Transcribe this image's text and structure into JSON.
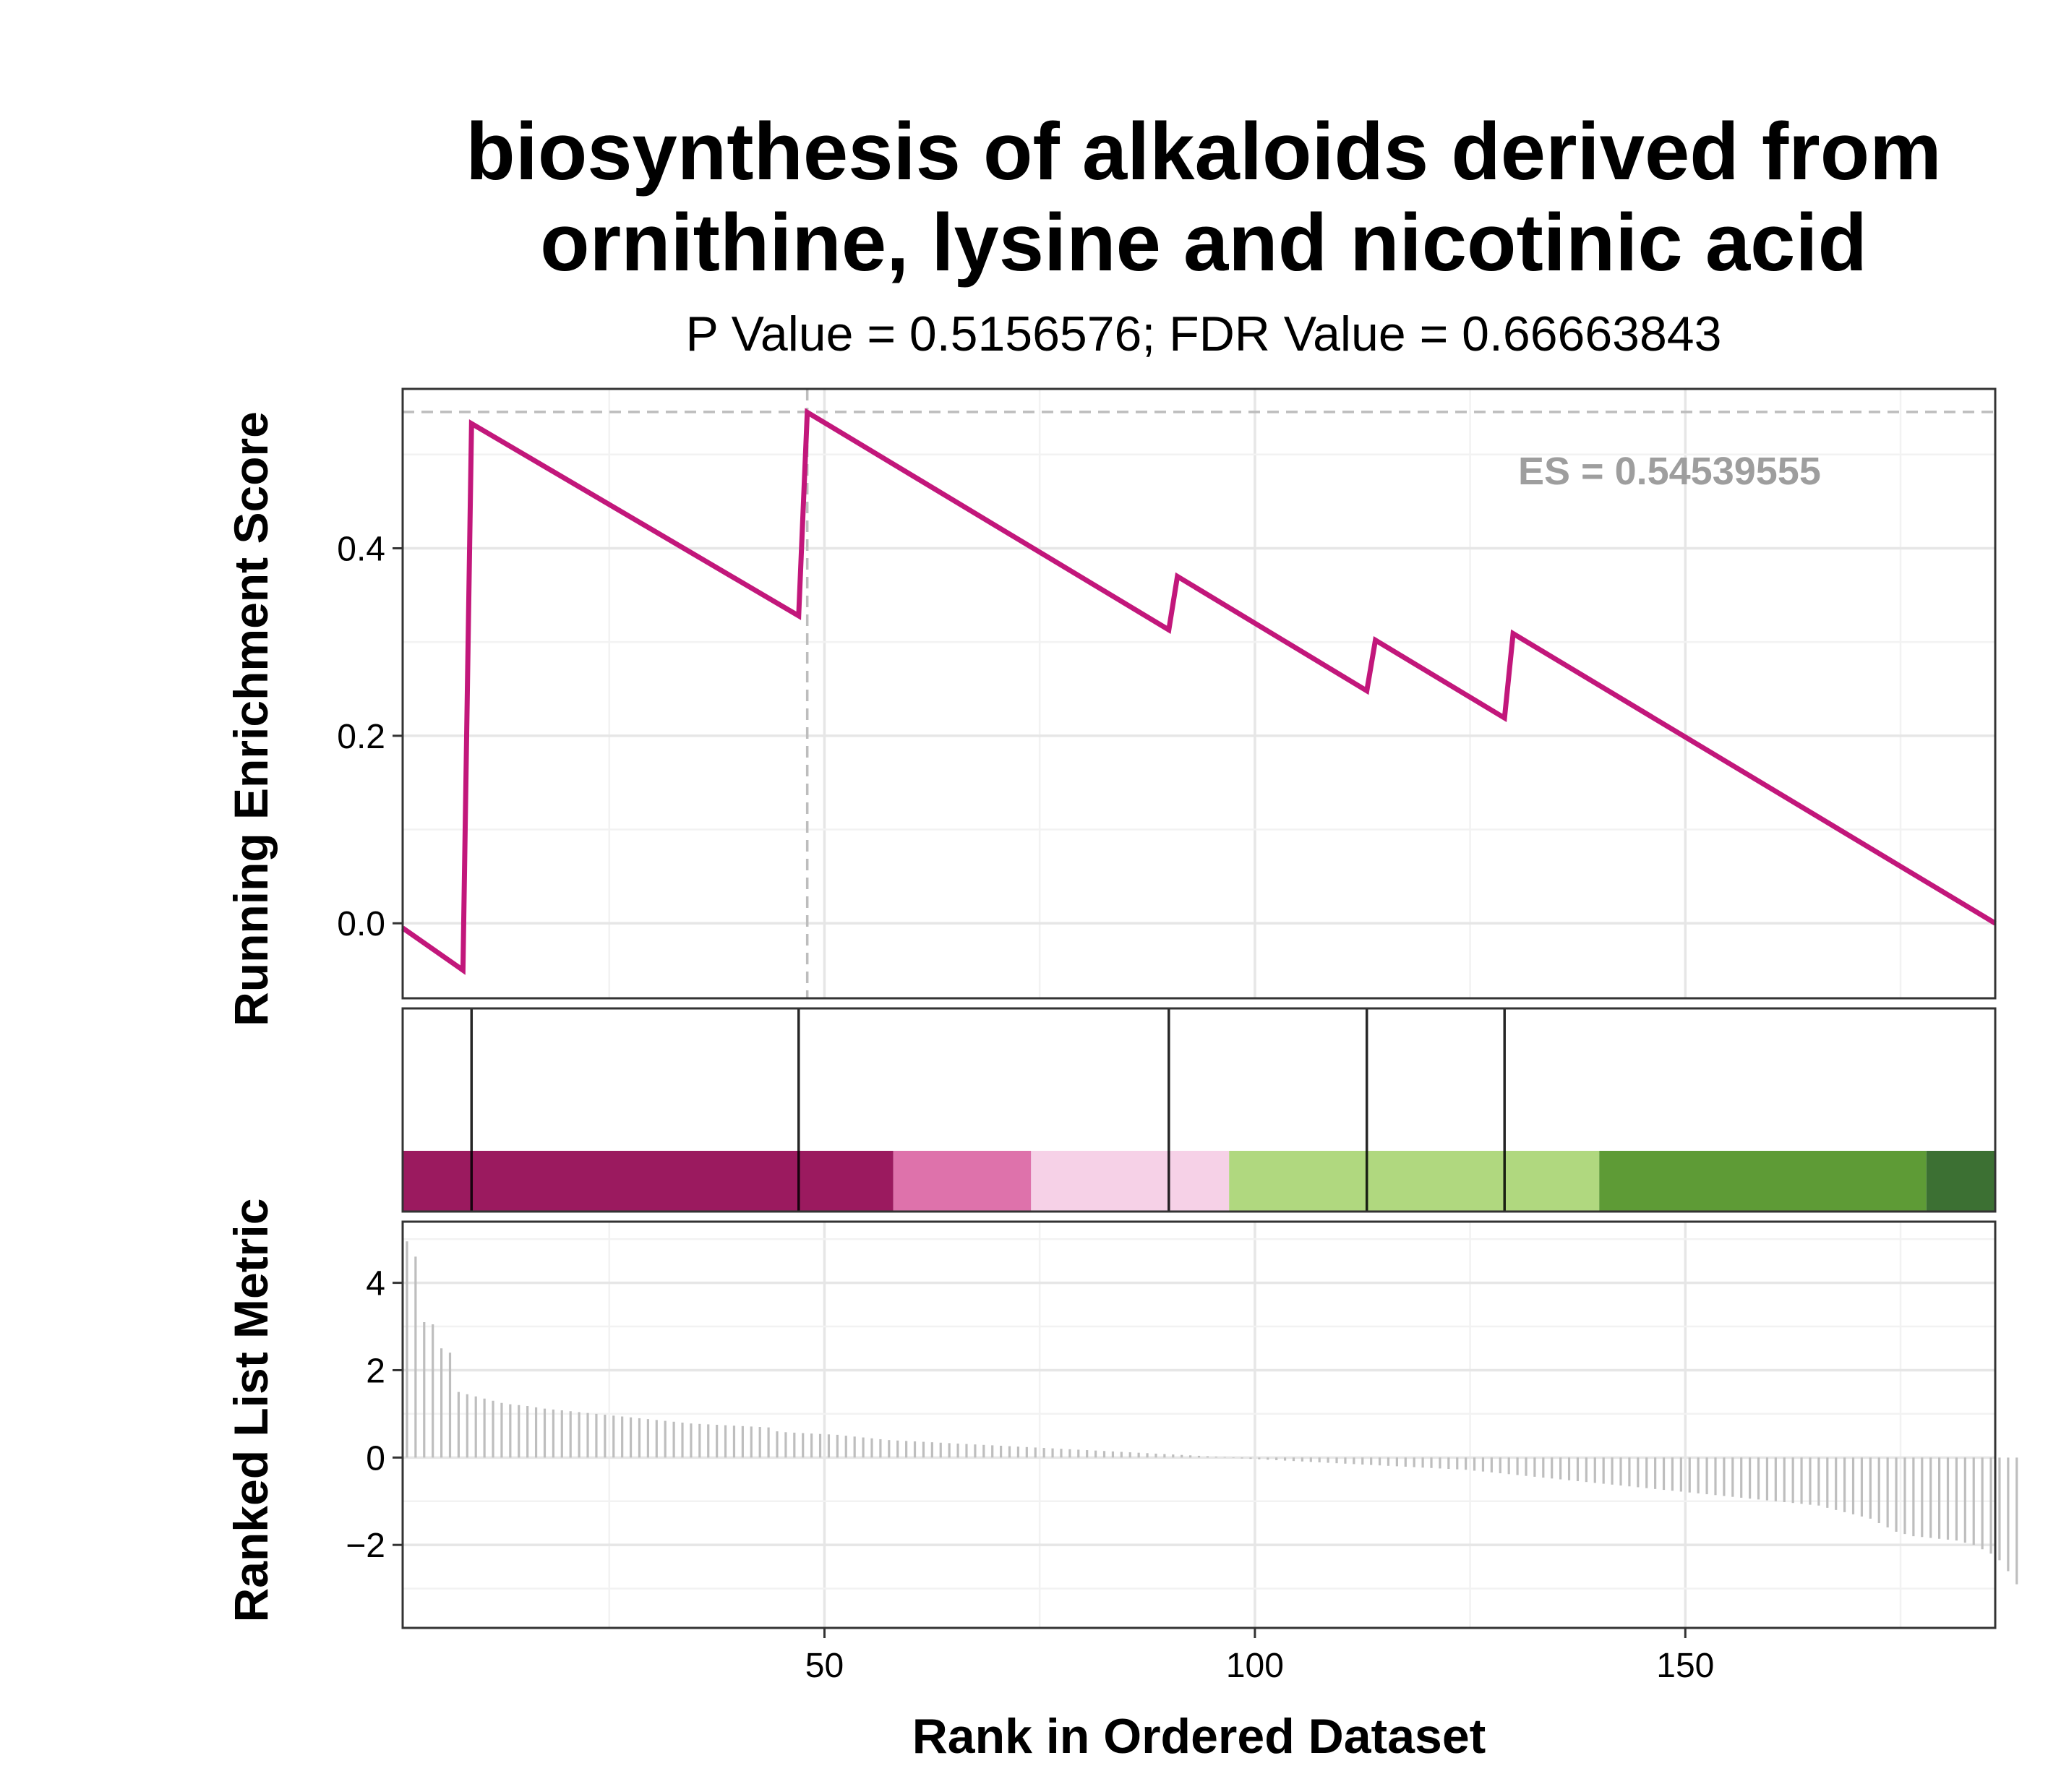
{
  "chart_data": {
    "type": "line",
    "title_lines": [
      "biosynthesis of alkaloids derived from",
      "ornithine, lysine and nicotinic acid"
    ],
    "subtitle": "P Value = 0.5156576; FDR Value = 0.66663843",
    "xlabel": "Rank in Ordered Dataset",
    "xlim": [
      1,
      186
    ],
    "xticks": [
      50,
      100,
      150
    ],
    "xtick_labels": [
      "50",
      "100",
      "150"
    ],
    "grid": true,
    "panels": {
      "enrichment": {
        "ylabel": "Running Enrichment Score",
        "ylim": [
          -0.08,
          0.57
        ],
        "yticks": [
          0.0,
          0.2,
          0.4
        ],
        "ytick_labels": [
          "0.0",
          "0.2",
          "0.4"
        ],
        "es_annotation": "ES = 0.54539555",
        "es_value": 0.54539555,
        "es_rank": 48,
        "line_color": "#C2177B",
        "series": [
          {
            "x": [
              1,
              8,
              9,
              47,
              48,
              90,
              91,
              113,
              114,
              129,
              130,
              186
            ],
            "y": [
              -0.005,
              -0.05,
              0.533,
              0.328,
              0.545,
              0.313,
              0.37,
              0.248,
              0.302,
              0.219,
              0.309,
              0.0
            ]
          }
        ]
      },
      "hits": {
        "positions": [
          9,
          47,
          90,
          113,
          129
        ],
        "bands": [
          {
            "from": 1,
            "to": 58,
            "color": "#9B1A5F"
          },
          {
            "from": 58,
            "to": 74,
            "color": "#DE72AB"
          },
          {
            "from": 74,
            "to": 97,
            "color": "#F6D1E7"
          },
          {
            "from": 97,
            "to": 140,
            "color": "#B0D87F"
          },
          {
            "from": 140,
            "to": 178,
            "color": "#5E9B36"
          },
          {
            "from": 178,
            "to": 186,
            "color": "#3C7033"
          }
        ]
      },
      "ranked": {
        "ylabel": "Ranked List Metric",
        "ylim": [
          -3.9,
          5.4
        ],
        "yticks": [
          -2,
          0,
          2,
          4
        ],
        "ytick_labels": [
          "−2",
          "0",
          "2",
          "4"
        ],
        "bar_color": "#BEBEBE",
        "values": [
          4.95,
          4.6,
          3.1,
          3.05,
          2.5,
          2.4,
          1.5,
          1.45,
          1.4,
          1.35,
          1.3,
          1.25,
          1.22,
          1.2,
          1.18,
          1.15,
          1.12,
          1.1,
          1.08,
          1.06,
          1.04,
          1.02,
          1.0,
          0.98,
          0.96,
          0.94,
          0.92,
          0.9,
          0.88,
          0.86,
          0.84,
          0.82,
          0.8,
          0.78,
          0.77,
          0.76,
          0.75,
          0.74,
          0.73,
          0.72,
          0.71,
          0.7,
          0.69,
          0.6,
          0.58,
          0.57,
          0.56,
          0.55,
          0.54,
          0.53,
          0.52,
          0.5,
          0.48,
          0.46,
          0.44,
          0.42,
          0.4,
          0.39,
          0.38,
          0.37,
          0.36,
          0.35,
          0.34,
          0.33,
          0.32,
          0.31,
          0.3,
          0.29,
          0.28,
          0.27,
          0.26,
          0.25,
          0.24,
          0.23,
          0.22,
          0.21,
          0.2,
          0.19,
          0.18,
          0.17,
          0.16,
          0.15,
          0.14,
          0.13,
          0.12,
          0.11,
          0.1,
          0.09,
          0.08,
          0.07,
          0.06,
          0.05,
          0.04,
          0.03,
          0.02,
          0.01,
          -0.01,
          -0.02,
          -0.03,
          -0.04,
          -0.05,
          -0.06,
          -0.07,
          -0.08,
          -0.09,
          -0.1,
          -0.11,
          -0.12,
          -0.13,
          -0.14,
          -0.15,
          -0.16,
          -0.17,
          -0.18,
          -0.19,
          -0.2,
          -0.21,
          -0.22,
          -0.23,
          -0.24,
          -0.25,
          -0.26,
          -0.27,
          -0.28,
          -0.3,
          -0.32,
          -0.34,
          -0.36,
          -0.38,
          -0.4,
          -0.42,
          -0.44,
          -0.46,
          -0.48,
          -0.5,
          -0.52,
          -0.54,
          -0.56,
          -0.58,
          -0.6,
          -0.62,
          -0.64,
          -0.66,
          -0.68,
          -0.7,
          -0.72,
          -0.74,
          -0.76,
          -0.78,
          -0.8,
          -0.82,
          -0.84,
          -0.86,
          -0.88,
          -0.9,
          -0.92,
          -0.94,
          -0.96,
          -0.98,
          -1.0,
          -1.02,
          -1.04,
          -1.06,
          -1.08,
          -1.1,
          -1.15,
          -1.2,
          -1.25,
          -1.3,
          -1.35,
          -1.4,
          -1.5,
          -1.6,
          -1.7,
          -1.75,
          -1.8,
          -1.82,
          -1.84,
          -1.86,
          -1.88,
          -1.9,
          -1.95,
          -2.0,
          -2.1,
          -2.2,
          -2.35,
          -2.6,
          -2.9
        ]
      }
    }
  }
}
